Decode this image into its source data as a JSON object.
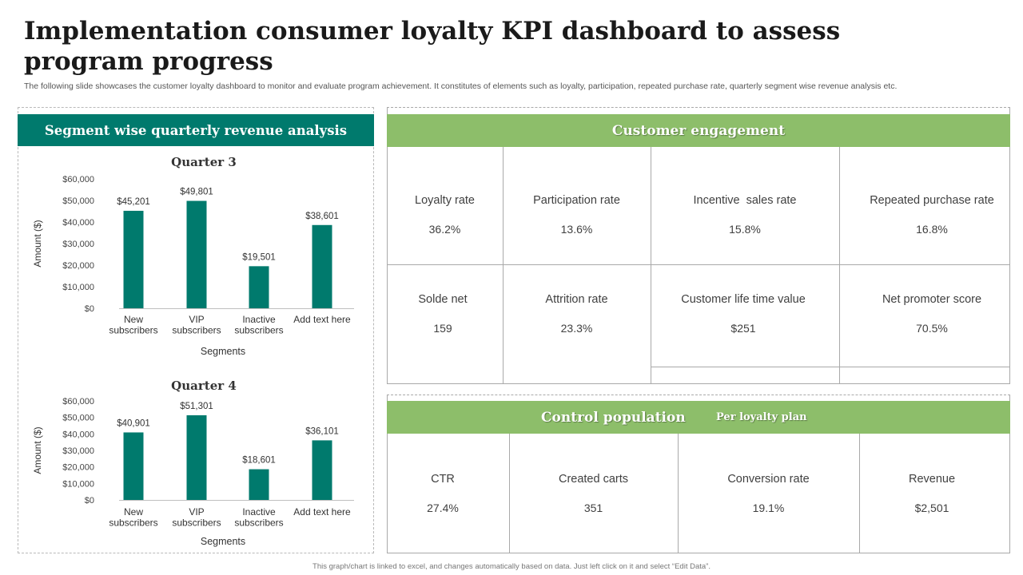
{
  "title": "Implementation consumer loyalty KPI dashboard to assess program progress",
  "subtitle": "The following slide showcases the customer loyalty dashboard to monitor and evaluate program achievement. It constitutes of elements such as loyalty, participation, repeated purchase rate, quarterly segment wise revenue analysis etc.",
  "left_panel": {
    "header": "Segment wise quarterly revenue analysis"
  },
  "chart_data": [
    {
      "type": "bar",
      "title": "Quarter 3",
      "categories": [
        [
          "New",
          "subscribers"
        ],
        [
          "VIP",
          "subscribers"
        ],
        [
          "Inactive",
          "subscribers"
        ],
        [
          "Add text here"
        ]
      ],
      "values": [
        45201,
        49801,
        19501,
        38601
      ],
      "value_labels": [
        "$45,201",
        "$49,801",
        "$19,501",
        "$38,601"
      ],
      "xlabel": "Segments",
      "ylabel": "Amount ($)",
      "ylim": [
        0,
        60000
      ],
      "yticks": [
        "$0",
        "$10,000",
        "$20,000",
        "$30,000",
        "$40,000",
        "$50,000",
        "$60,000"
      ],
      "color": "#007a6d",
      "grid": false
    },
    {
      "type": "bar",
      "title": "Quarter 4",
      "categories": [
        [
          "New",
          "subscribers"
        ],
        [
          "VIP",
          "subscribers"
        ],
        [
          "Inactive",
          "subscribers"
        ],
        [
          "Add text here"
        ]
      ],
      "values": [
        40901,
        51301,
        18601,
        36101
      ],
      "value_labels": [
        "$40,901",
        "$51,301",
        "$18,601",
        "$36,101"
      ],
      "xlabel": "Segments",
      "ylabel": "Amount ($)",
      "ylim": [
        0,
        60000
      ],
      "yticks": [
        "$0",
        "$10,000",
        "$20,000",
        "$30,000",
        "$40,000",
        "$50,000",
        "$60,000"
      ],
      "color": "#007a6d",
      "grid": false
    }
  ],
  "engagement": {
    "header": "Customer engagement",
    "kpis": [
      {
        "label": "Loyalty rate",
        "value": "36.2%"
      },
      {
        "label": "Participation rate",
        "value": "13.6%"
      },
      {
        "label": "Incentive  sales rate",
        "value": "15.8%"
      },
      {
        "label": "Repeated purchase rate",
        "value": "16.8%"
      },
      {
        "label": "Solde net",
        "value": "159"
      },
      {
        "label": "Attrition rate",
        "value": "23.3%"
      },
      {
        "label": "Customer life time value",
        "value": "$251"
      },
      {
        "label": "Net promoter score",
        "value": "70.5%"
      }
    ]
  },
  "control": {
    "header": "Control population",
    "subheader": "Per loyalty plan",
    "kpis": [
      {
        "label": "CTR",
        "value": "27.4%"
      },
      {
        "label": "Created carts",
        "value": "351"
      },
      {
        "label": "Conversion rate",
        "value": "19.1%"
      },
      {
        "label": "Revenue",
        "value": "$2,501"
      }
    ]
  },
  "colors": {
    "teal": "#007a6d",
    "green": "#8dbe6a"
  },
  "footer": "This graph/chart is linked to excel, and changes automatically based on data. Just left click on it and select “Edit Data”."
}
